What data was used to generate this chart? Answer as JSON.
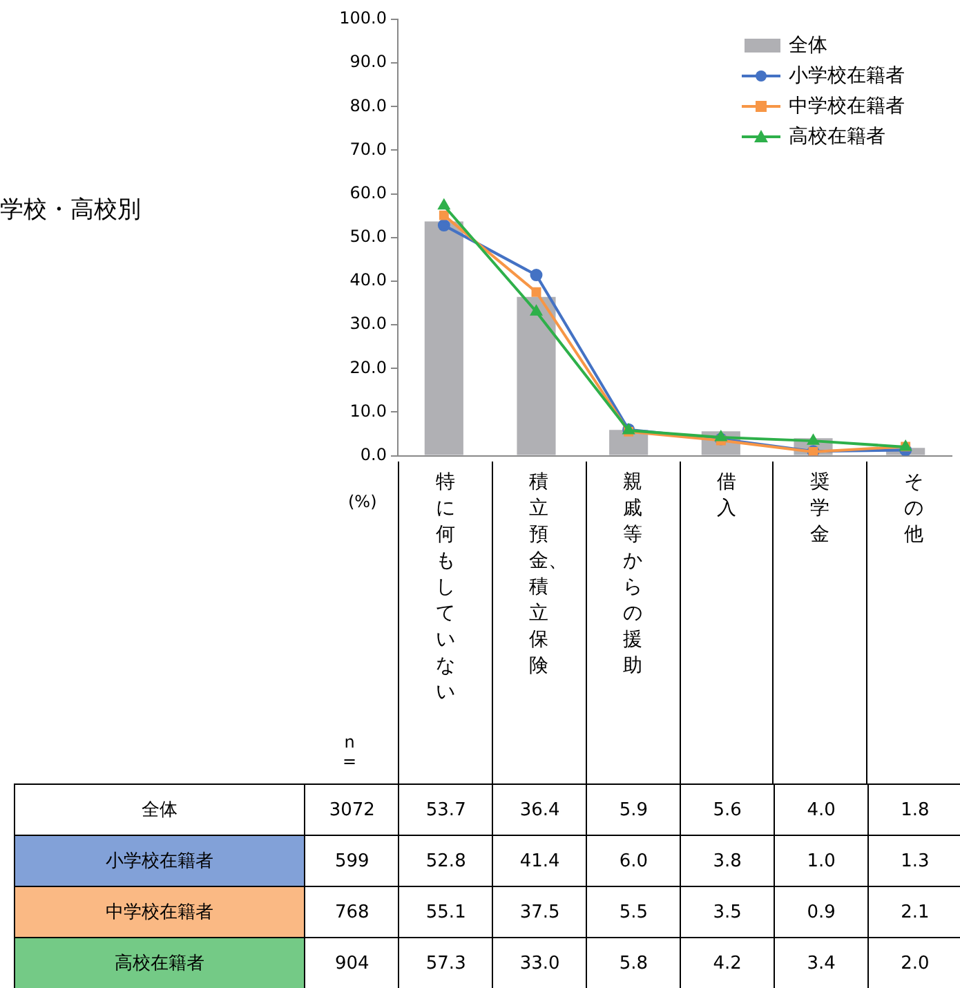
{
  "chart_data": {
    "type": "bar",
    "title": "学校・高校別",
    "categories": [
      "特に何もしていない",
      "積立預金、積立保険",
      "親戚等からの援助",
      "借入",
      "奨学金",
      "その他"
    ],
    "series": [
      {
        "name": "全体",
        "color": "#b0b0b4",
        "values": [
          53.7,
          36.4,
          5.9,
          5.6,
          4.0,
          1.8
        ],
        "value_labels": [
          "53.7",
          "36.4",
          "5.9",
          "5.6",
          "4.0",
          "1.8"
        ]
      },
      {
        "name": "小学校在籍者",
        "type": "line",
        "color": "#4472c4",
        "marker": "circle",
        "values": [
          52.8,
          41.4,
          6.0,
          3.8,
          1.0,
          1.3
        ],
        "value_labels": [
          "52.8",
          "41.4",
          "6.0",
          "3.8",
          "1.0",
          "1.3"
        ]
      },
      {
        "name": "中学校在籍者",
        "type": "line",
        "color": "#f79646",
        "marker": "square",
        "values": [
          55.1,
          37.5,
          5.5,
          3.5,
          0.9,
          2.1
        ],
        "value_labels": [
          "55.1",
          "37.5",
          "5.5",
          "3.5",
          "0.9",
          "2.1"
        ]
      },
      {
        "name": "高校在籍者",
        "type": "line",
        "color": "#2eb04a",
        "marker": "triangle",
        "values": [
          57.3,
          33.0,
          5.8,
          4.2,
          3.4,
          2.0
        ],
        "value_labels": [
          "57.3",
          "33.0",
          "5.8",
          "4.2",
          "3.4",
          "2.0"
        ]
      }
    ],
    "ylim": [
      0,
      100
    ],
    "yticks": [
      {
        "value": 0,
        "label": "0.0"
      },
      {
        "value": 10,
        "label": "10.0"
      },
      {
        "value": 20,
        "label": "20.0"
      },
      {
        "value": 30,
        "label": "30.0"
      },
      {
        "value": 40,
        "label": "40.0"
      },
      {
        "value": 50,
        "label": "50.0"
      },
      {
        "value": 60,
        "label": "60.0"
      },
      {
        "value": 70,
        "label": "70.0"
      },
      {
        "value": 80,
        "label": "80.0"
      },
      {
        "value": 90,
        "label": "90.0"
      },
      {
        "value": 100,
        "label": "100.0"
      }
    ],
    "grid": false,
    "legend": "top right",
    "annotations": [
      "(%)",
      "n =",
      "3072",
      "599",
      "768",
      "904"
    ]
  }
}
